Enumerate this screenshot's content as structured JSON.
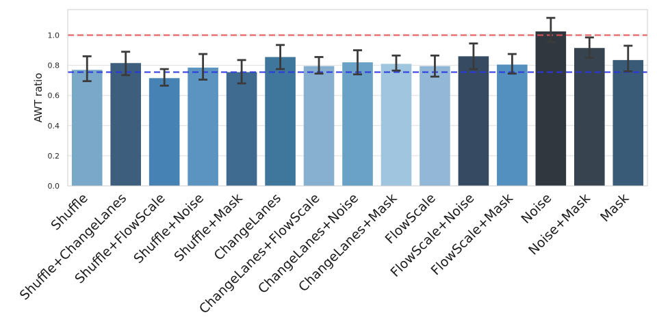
{
  "chart_data": {
    "type": "bar",
    "ylabel": "AWT ratio",
    "xlabel": "",
    "ylim": [
      0,
      1.17
    ],
    "yticks": [
      0.0,
      0.2,
      0.4,
      0.6,
      0.8,
      1.0
    ],
    "ytick_labels": [
      "0.0",
      "0.2",
      "0.4",
      "0.6",
      "0.8",
      "1.0"
    ],
    "grid": true,
    "categories": [
      "Shuffle",
      "Shuffle+ChangeLanes",
      "Shuffle+FlowScale",
      "Shuffle+Noise",
      "Shuffle+Mask",
      "ChangeLanes",
      "ChangeLanes+FlowScale",
      "ChangeLanes+Noise",
      "ChangeLanes+Mask",
      "FlowScale",
      "FlowScale+Noise",
      "FlowScale+Mask",
      "Noise",
      "Noise+Mask",
      "Mask"
    ],
    "values": [
      0.77,
      0.815,
      0.715,
      0.785,
      0.755,
      0.855,
      0.795,
      0.82,
      0.81,
      0.795,
      0.86,
      0.805,
      1.025,
      0.915,
      0.835
    ],
    "err_low": [
      0.695,
      0.735,
      0.665,
      0.705,
      0.68,
      0.775,
      0.745,
      0.74,
      0.765,
      0.725,
      0.775,
      0.745,
      0.955,
      0.85,
      0.76
    ],
    "err_high": [
      0.86,
      0.89,
      0.775,
      0.875,
      0.835,
      0.935,
      0.855,
      0.9,
      0.865,
      0.865,
      0.945,
      0.875,
      1.115,
      0.985,
      0.93
    ],
    "colors": [
      "#7aa8c9",
      "#3d5f7d",
      "#4682b4",
      "#5c94c1",
      "#3e6b8f",
      "#3f779c",
      "#87b0d0",
      "#6aa1c7",
      "#9fc5df",
      "#93b8d7",
      "#364b62",
      "#5490bf",
      "#31373f",
      "#37444f",
      "#3a5b78"
    ],
    "reference_lines": [
      {
        "name": "red-dashed",
        "value": 1.0,
        "color": "#e8545a"
      },
      {
        "name": "blue-dashed",
        "value": 0.755,
        "color": "#2b37e0"
      }
    ],
    "error_bar_color": "#3a3a3a"
  }
}
